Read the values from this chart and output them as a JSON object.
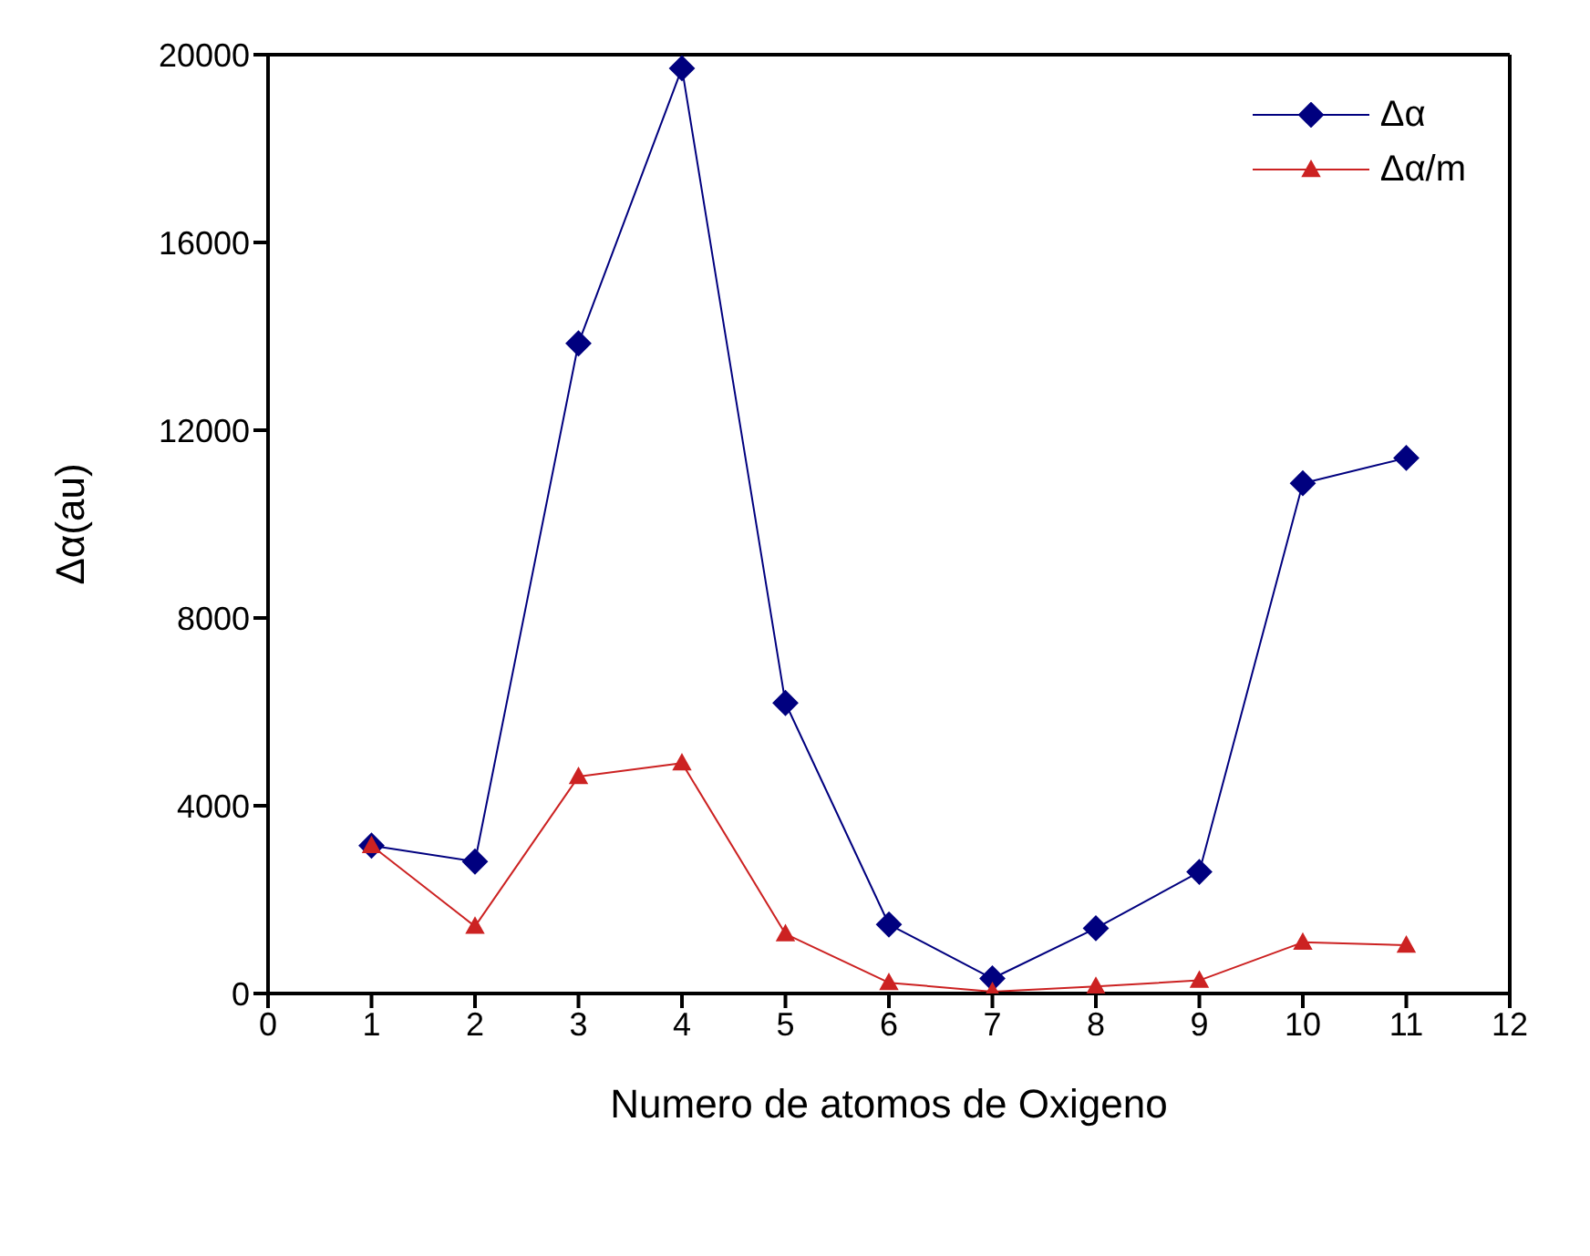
{
  "chart_data": {
    "type": "line",
    "xlabel": "Numero de atomos de Oxigeno",
    "ylabel": "Δα(au)",
    "x": [
      1,
      2,
      3,
      4,
      5,
      6,
      7,
      8,
      9,
      10,
      11
    ],
    "series": [
      {
        "name": "Δα",
        "color": "#00007f",
        "marker": "diamond",
        "values": [
          3150,
          2810,
          13850,
          19710,
          6190,
          1470,
          320,
          1390,
          2590,
          10870,
          11410
        ]
      },
      {
        "name": "Δα/m",
        "color": "#cc2222",
        "marker": "triangle",
        "values": [
          3150,
          1430,
          4620,
          4910,
          1270,
          230,
          40,
          150,
          280,
          1090,
          1030
        ]
      }
    ],
    "xlim": [
      0,
      12
    ],
    "xticks": [
      0,
      1,
      2,
      3,
      4,
      5,
      6,
      7,
      8,
      9,
      10,
      11,
      12
    ],
    "ylim": [
      0,
      20000
    ],
    "yticks": [
      0,
      4000,
      8000,
      12000,
      16000,
      20000
    ],
    "grid": false,
    "legend": "top right",
    "line_style": "solid"
  }
}
